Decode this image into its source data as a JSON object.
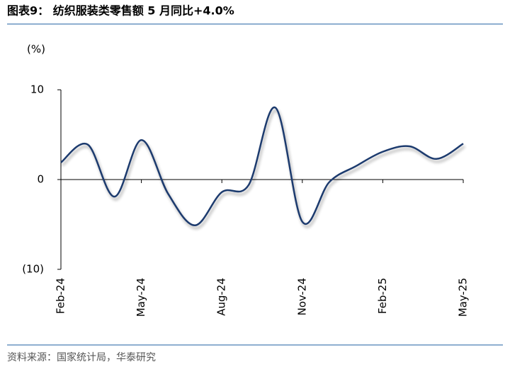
{
  "chart_data": {
    "type": "line",
    "title": "图表9： 纺织服装类零售额 5 月同比+4.0%",
    "y_label": "(%)",
    "source": "资料来源：国家统计局，华泰研究",
    "categories": [
      "Feb-24",
      null,
      null,
      "May-24",
      null,
      null,
      "Aug-24",
      null,
      null,
      "Nov-24",
      null,
      null,
      "Feb-25",
      null,
      null,
      "May-25"
    ],
    "values": [
      1.9,
      3.9,
      -1.9,
      4.4,
      -1.6,
      -5.1,
      -1.4,
      -0.6,
      8.0,
      -4.7,
      -0.3,
      1.5,
      3.1,
      3.7,
      2.3,
      4.0
    ],
    "color": "#1f3a6e",
    "ylim": [
      -10,
      10
    ],
    "yticks": [
      10,
      0,
      {
        "value": -10,
        "label": "(10)"
      }
    ],
    "grid": false
  }
}
